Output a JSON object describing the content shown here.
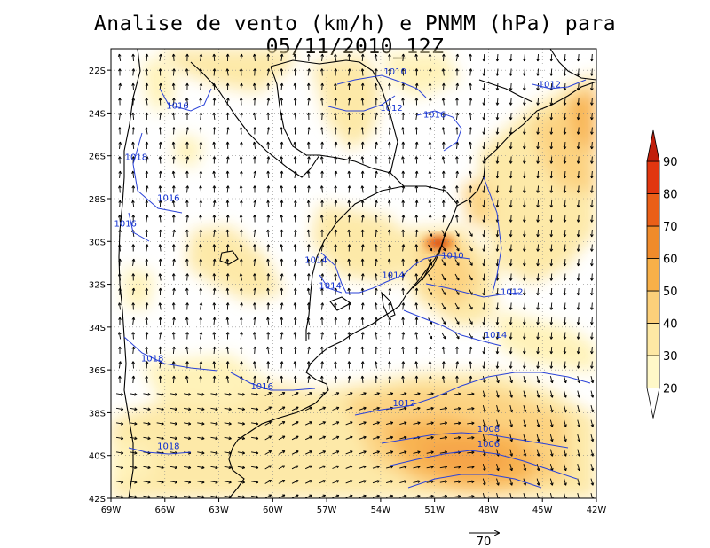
{
  "title": "Analise de vento (km/h) e PNMM (hPa) para 05/11/2010_12Z",
  "map": {
    "lon_ticks": [
      "69W",
      "66W",
      "63W",
      "60W",
      "57W",
      "54W",
      "51W",
      "48W",
      "45W",
      "42W"
    ],
    "lat_ticks": [
      "22S",
      "24S",
      "26S",
      "28S",
      "30S",
      "32S",
      "34S",
      "36S",
      "38S",
      "40S",
      "42S"
    ],
    "lon_range": [
      -69,
      -42
    ],
    "lat_range": [
      -42,
      -21
    ]
  },
  "isobars": [
    {
      "label": "1010",
      "lon": -53.2,
      "lat": -22.2
    },
    {
      "label": "1012",
      "lon": -53.4,
      "lat": -23.9
    },
    {
      "label": "1016",
      "lon": -65.3,
      "lat": -23.8
    },
    {
      "label": "1016",
      "lon": -51.0,
      "lat": -24.2
    },
    {
      "label": "1018",
      "lon": -67.6,
      "lat": -26.2
    },
    {
      "label": "1016",
      "lon": -65.8,
      "lat": -28.1
    },
    {
      "label": "1016",
      "lon": -68.2,
      "lat": -29.3
    },
    {
      "label": "1014",
      "lon": -57.6,
      "lat": -31.0
    },
    {
      "label": "1014",
      "lon": -56.8,
      "lat": -32.2
    },
    {
      "label": "1014",
      "lon": -53.3,
      "lat": -31.7
    },
    {
      "label": "1010",
      "lon": -50.0,
      "lat": -30.8
    },
    {
      "label": "1012",
      "lon": -46.7,
      "lat": -32.5
    },
    {
      "label": "1014",
      "lon": -47.6,
      "lat": -34.5
    },
    {
      "label": "1018",
      "lon": -66.7,
      "lat": -35.6
    },
    {
      "label": "1016",
      "lon": -60.6,
      "lat": -36.9
    },
    {
      "label": "1012",
      "lon": -52.7,
      "lat": -37.7
    },
    {
      "label": "1008",
      "lon": -48.0,
      "lat": -38.9
    },
    {
      "label": "1006",
      "lon": -48.0,
      "lat": -39.6
    },
    {
      "label": "1018",
      "lon": -65.8,
      "lat": -39.7
    },
    {
      "label": "1012",
      "lon": -44.6,
      "lat": -22.8
    }
  ],
  "colorbar": {
    "levels": [
      "20",
      "30",
      "40",
      "50",
      "60",
      "70",
      "80",
      "90"
    ],
    "colors": [
      "#fff8c8",
      "#fde8a4",
      "#fcd07a",
      "#f8b048",
      "#f08b2b",
      "#ea5f18",
      "#e1360f",
      "#c11f0c"
    ]
  },
  "reference_vector": {
    "label": "70"
  },
  "colors": {
    "isobar": "#2a42d8",
    "coast": "#000000",
    "grid": "#7a7a7a"
  }
}
